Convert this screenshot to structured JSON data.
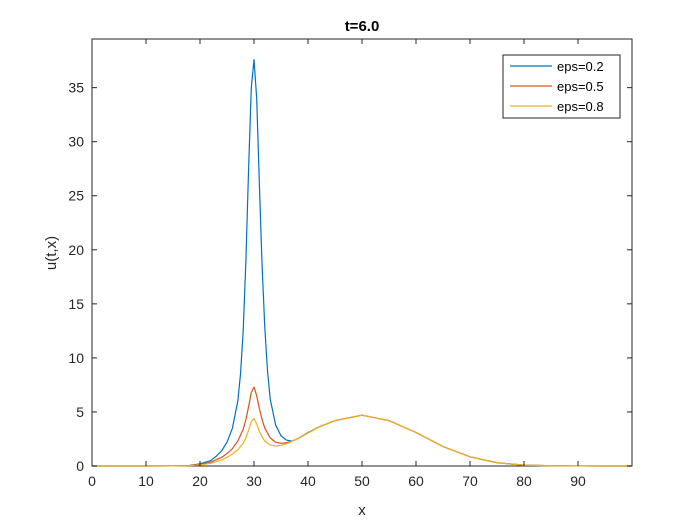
{
  "chart_data": {
    "type": "line",
    "title": "t=6.0",
    "xlabel": "x",
    "ylabel": "u(t,x)",
    "xlim": [
      0,
      100
    ],
    "ylim": [
      0,
      39.5
    ],
    "xticks": [
      0,
      10,
      20,
      30,
      40,
      50,
      60,
      70,
      80,
      90
    ],
    "yticks": [
      0,
      5,
      10,
      15,
      20,
      25,
      30,
      35
    ],
    "grid": false,
    "legend_position": "top-right",
    "series": [
      {
        "name": "eps=0.2",
        "color": "#0072BD",
        "x": [
          0,
          10,
          15,
          18,
          20,
          22,
          23,
          24,
          25,
          26,
          27,
          27.5,
          28,
          28.5,
          29,
          29.5,
          30,
          30.5,
          31,
          31.5,
          32,
          32.5,
          33,
          34,
          35,
          36,
          37,
          38,
          39,
          40,
          42,
          45,
          50,
          55,
          60,
          65,
          70,
          75,
          80,
          85,
          90,
          95,
          100
        ],
        "values": [
          0,
          0,
          0.01,
          0.05,
          0.2,
          0.5,
          0.9,
          1.4,
          2.2,
          3.5,
          6.0,
          8.5,
          12.5,
          19.0,
          27.5,
          35.0,
          37.6,
          34.0,
          26.0,
          18.5,
          12.8,
          8.8,
          6.2,
          3.8,
          2.8,
          2.4,
          2.3,
          2.5,
          2.8,
          3.1,
          3.6,
          4.2,
          4.7,
          4.2,
          3.1,
          1.8,
          0.85,
          0.3,
          0.08,
          0.02,
          0.005,
          0,
          0
        ]
      },
      {
        "name": "eps=0.5",
        "color": "#D95319",
        "x": [
          0,
          10,
          15,
          18,
          20,
          22,
          24,
          25,
          26,
          27,
          28,
          28.5,
          29,
          29.5,
          30,
          30.5,
          31,
          31.5,
          32,
          33,
          34,
          35,
          36,
          37,
          38,
          40,
          42,
          45,
          50,
          55,
          60,
          65,
          70,
          75,
          80,
          85,
          90,
          95,
          100
        ],
        "values": [
          0,
          0,
          0.01,
          0.04,
          0.15,
          0.35,
          0.8,
          1.15,
          1.6,
          2.3,
          3.4,
          4.3,
          5.5,
          6.8,
          7.3,
          6.5,
          5.3,
          4.3,
          3.5,
          2.6,
          2.2,
          2.1,
          2.15,
          2.3,
          2.5,
          3.05,
          3.6,
          4.2,
          4.7,
          4.2,
          3.1,
          1.8,
          0.85,
          0.3,
          0.08,
          0.02,
          0.005,
          0,
          0
        ]
      },
      {
        "name": "eps=0.8",
        "color": "#EDB120",
        "x": [
          0,
          10,
          15,
          18,
          20,
          22,
          24,
          25,
          26,
          27,
          28,
          28.5,
          29,
          29.5,
          30,
          30.5,
          31,
          31.5,
          32,
          33,
          34,
          35,
          36,
          38,
          40,
          42,
          45,
          50,
          55,
          60,
          65,
          70,
          75,
          80,
          85,
          90,
          95,
          100
        ],
        "values": [
          0,
          0,
          0.01,
          0.03,
          0.1,
          0.25,
          0.55,
          0.8,
          1.1,
          1.5,
          2.1,
          2.6,
          3.3,
          4.1,
          4.4,
          3.9,
          3.2,
          2.7,
          2.3,
          1.95,
          1.85,
          1.9,
          2.05,
          2.5,
          3.05,
          3.6,
          4.2,
          4.7,
          4.2,
          3.1,
          1.8,
          0.85,
          0.3,
          0.08,
          0.02,
          0.005,
          0,
          0
        ]
      }
    ]
  }
}
